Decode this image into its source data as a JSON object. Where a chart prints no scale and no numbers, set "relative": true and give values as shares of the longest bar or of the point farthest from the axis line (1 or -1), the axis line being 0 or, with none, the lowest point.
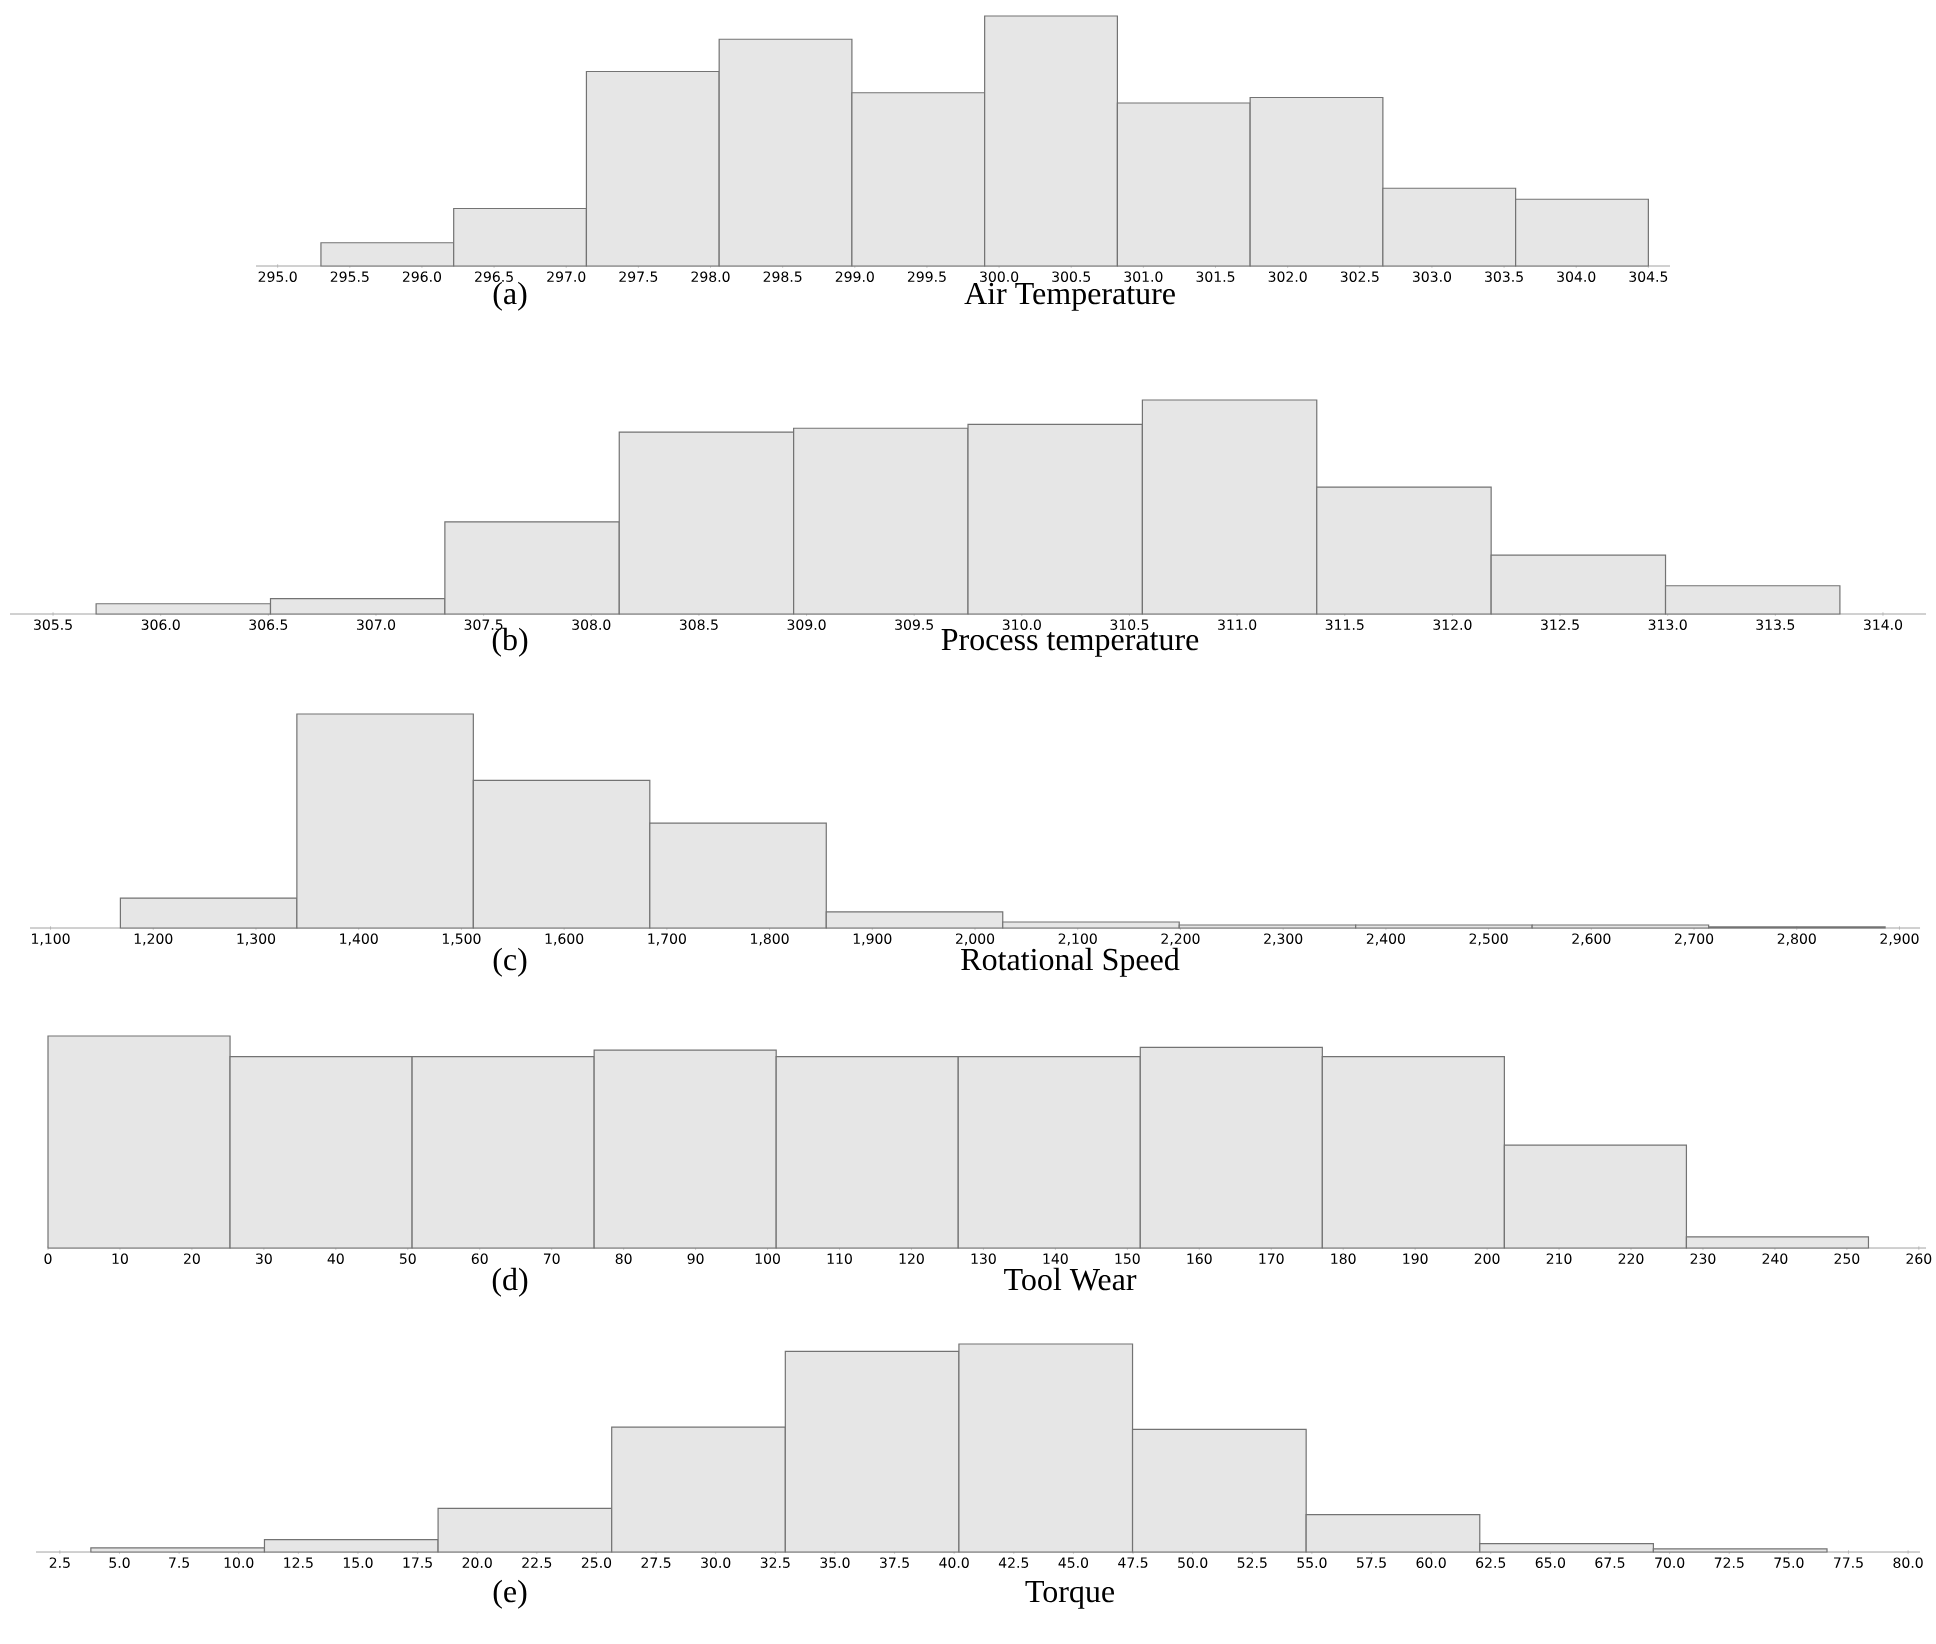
{
  "chart_data": [
    {
      "type": "bar",
      "xlabel": "Air Temperature",
      "annotations": [
        "(a)"
      ],
      "relative": true,
      "color": "#e6e6e6",
      "x": [
        295.76,
        296.68,
        297.6,
        298.52,
        299.44,
        300.36,
        301.28,
        302.2,
        303.12,
        304.04
      ],
      "values": [
        0.093,
        0.23,
        0.778,
        0.907,
        0.693,
        1,
        0.652,
        0.674,
        0.311,
        0.267
      ],
      "xlim": [
        294.85,
        304.65
      ],
      "xticks": [
        {
          "value": 295,
          "label": "295.0"
        },
        {
          "value": 295.5,
          "label": "295.5"
        },
        {
          "value": 296,
          "label": "296.0"
        },
        {
          "value": 296.5,
          "label": "296.5"
        },
        {
          "value": 297,
          "label": "297.0"
        },
        {
          "value": 297.5,
          "label": "297.5"
        },
        {
          "value": 298,
          "label": "298.0"
        },
        {
          "value": 298.5,
          "label": "298.5"
        },
        {
          "value": 299,
          "label": "299.0"
        },
        {
          "value": 299.5,
          "label": "299.5"
        },
        {
          "value": 300,
          "label": "300.0"
        },
        {
          "value": 300.5,
          "label": "300.5"
        },
        {
          "value": 301,
          "label": "301.0"
        },
        {
          "value": 301.5,
          "label": "301.5"
        },
        {
          "value": 302,
          "label": "302.0"
        },
        {
          "value": 302.5,
          "label": "302.5"
        },
        {
          "value": 303,
          "label": "303.0"
        },
        {
          "value": 303.5,
          "label": "303.5"
        },
        {
          "value": 304,
          "label": "304.0"
        },
        {
          "value": 304.5,
          "label": "304.5"
        }
      ]
    },
    {
      "type": "bar",
      "xlabel": "Process temperature",
      "annotations": [
        "(b)"
      ],
      "relative": true,
      "color": "#e6e6e6",
      "x": [
        306.105,
        306.915,
        307.725,
        308.535,
        309.345,
        310.155,
        310.965,
        311.775,
        312.585,
        313.395
      ],
      "values": [
        0.048,
        0.072,
        0.431,
        0.85,
        0.868,
        0.886,
        1,
        0.593,
        0.275,
        0.132
      ],
      "xlim": [
        305.3,
        314.2
      ],
      "xticks": [
        {
          "value": 305.5,
          "label": "305.5"
        },
        {
          "value": 306,
          "label": "306.0"
        },
        {
          "value": 306.5,
          "label": "306.5"
        },
        {
          "value": 307,
          "label": "307.0"
        },
        {
          "value": 307.5,
          "label": "307.5"
        },
        {
          "value": 308,
          "label": "308.0"
        },
        {
          "value": 308.5,
          "label": "308.5"
        },
        {
          "value": 309,
          "label": "309.0"
        },
        {
          "value": 309.5,
          "label": "309.5"
        },
        {
          "value": 310,
          "label": "310.0"
        },
        {
          "value": 310.5,
          "label": "310.5"
        },
        {
          "value": 311,
          "label": "311.0"
        },
        {
          "value": 311.5,
          "label": "311.5"
        },
        {
          "value": 312,
          "label": "312.0"
        },
        {
          "value": 312.5,
          "label": "312.5"
        },
        {
          "value": 313,
          "label": "313.0"
        },
        {
          "value": 313.5,
          "label": "313.5"
        },
        {
          "value": 314,
          "label": "314.0"
        }
      ]
    },
    {
      "type": "bar",
      "xlabel": "Rotational Speed",
      "annotations": [
        "(c)"
      ],
      "relative": true,
      "color": "#e6e6e6",
      "x": [
        1253.9,
        1425.7,
        1597.5,
        1769.3,
        1941.1,
        2112.9,
        2284.7,
        2456.5,
        2628.3,
        2800.1
      ],
      "values": [
        0.14,
        1,
        0.69,
        0.49,
        0.075,
        0.028,
        0.014,
        0.014,
        0.014,
        0.005
      ],
      "xlim": [
        1080,
        2920
      ],
      "xticks": [
        {
          "value": 1100,
          "label": "1,100"
        },
        {
          "value": 1200,
          "label": "1,200"
        },
        {
          "value": 1300,
          "label": "1,300"
        },
        {
          "value": 1400,
          "label": "1,400"
        },
        {
          "value": 1500,
          "label": "1,500"
        },
        {
          "value": 1600,
          "label": "1,600"
        },
        {
          "value": 1700,
          "label": "1,700"
        },
        {
          "value": 1800,
          "label": "1,800"
        },
        {
          "value": 1900,
          "label": "1,900"
        },
        {
          "value": 2000,
          "label": "2,000"
        },
        {
          "value": 2100,
          "label": "2,100"
        },
        {
          "value": 2200,
          "label": "2,200"
        },
        {
          "value": 2300,
          "label": "2,300"
        },
        {
          "value": 2400,
          "label": "2,400"
        },
        {
          "value": 2500,
          "label": "2,500"
        },
        {
          "value": 2600,
          "label": "2,600"
        },
        {
          "value": 2700,
          "label": "2,700"
        },
        {
          "value": 2800,
          "label": "2,800"
        },
        {
          "value": 2900,
          "label": "2,900"
        }
      ]
    },
    {
      "type": "bar",
      "xlabel": "Tool Wear",
      "annotations": [
        "(d)"
      ],
      "relative": true,
      "color": "#e6e6e6",
      "x": [
        12.65,
        37.95,
        63.25,
        88.55,
        113.85,
        139.15,
        164.45,
        189.75,
        215.05,
        240.35
      ],
      "values": [
        1,
        0.903,
        0.903,
        0.933,
        0.903,
        0.903,
        0.946,
        0.903,
        0.485,
        0.053
      ],
      "xlim": [
        0,
        261
      ],
      "xticks": [
        0,
        10,
        20,
        30,
        40,
        50,
        60,
        70,
        80,
        90,
        100,
        110,
        120,
        130,
        140,
        150,
        160,
        170,
        180,
        190,
        200,
        210,
        220,
        230,
        240,
        250,
        260
      ]
    },
    {
      "type": "bar",
      "xlabel": "Torque",
      "annotations": [
        "(e)"
      ],
      "relative": true,
      "color": "#e6e6e6",
      "x": [
        7.44,
        14.72,
        22,
        29.28,
        36.56,
        43.84,
        51.12,
        58.4,
        65.68,
        72.96
      ],
      "values": [
        0.02,
        0.06,
        0.21,
        0.6,
        0.965,
        1,
        0.59,
        0.18,
        0.04,
        0.015
      ],
      "xlim": [
        1.5,
        80.5
      ],
      "xticks": [
        {
          "value": 2.5,
          "label": "2.5"
        },
        {
          "value": 5,
          "label": "5.0"
        },
        {
          "value": 7.5,
          "label": "7.5"
        },
        {
          "value": 10,
          "label": "10.0"
        },
        {
          "value": 12.5,
          "label": "12.5"
        },
        {
          "value": 15,
          "label": "15.0"
        },
        {
          "value": 17.5,
          "label": "17.5"
        },
        {
          "value": 20,
          "label": "20.0"
        },
        {
          "value": 22.5,
          "label": "22.5"
        },
        {
          "value": 25,
          "label": "25.0"
        },
        {
          "value": 27.5,
          "label": "27.5"
        },
        {
          "value": 30,
          "label": "30.0"
        },
        {
          "value": 32.5,
          "label": "32.5"
        },
        {
          "value": 35,
          "label": "35.0"
        },
        {
          "value": 37.5,
          "label": "37.5"
        },
        {
          "value": 40,
          "label": "40.0"
        },
        {
          "value": 42.5,
          "label": "42.5"
        },
        {
          "value": 45,
          "label": "45.0"
        },
        {
          "value": 47.5,
          "label": "47.5"
        },
        {
          "value": 50,
          "label": "50.0"
        },
        {
          "value": 52.5,
          "label": "52.5"
        },
        {
          "value": 55,
          "label": "55.0"
        },
        {
          "value": 57.5,
          "label": "57.5"
        },
        {
          "value": 60,
          "label": "60.0"
        },
        {
          "value": 62.5,
          "label": "62.5"
        },
        {
          "value": 65,
          "label": "65.0"
        },
        {
          "value": 67.5,
          "label": "67.5"
        },
        {
          "value": 70,
          "label": "70.0"
        },
        {
          "value": 72.5,
          "label": "72.5"
        },
        {
          "value": 75,
          "label": "75.0"
        },
        {
          "value": 77.5,
          "label": "77.5"
        },
        {
          "value": 80,
          "label": "80.0"
        }
      ]
    }
  ]
}
